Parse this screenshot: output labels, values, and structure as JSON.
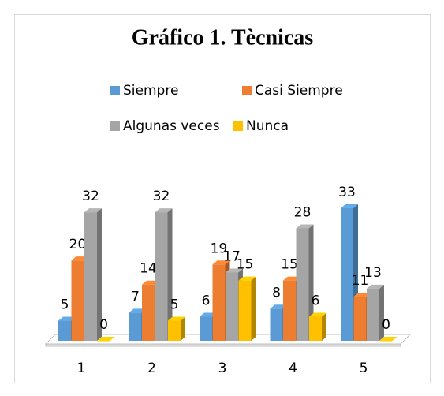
{
  "chart_data": {
    "type": "bar3d",
    "title": "Gráfico 1. Tècnicas",
    "categories": [
      "1",
      "2",
      "3",
      "4",
      "5"
    ],
    "series": [
      {
        "name": "Siempre",
        "color": "#5b9bd5",
        "values": [
          5,
          7,
          6,
          8,
          33
        ]
      },
      {
        "name": "Casi Siempre",
        "color": "#ed7d31",
        "values": [
          20,
          14,
          19,
          15,
          11
        ]
      },
      {
        "name": "Algunas veces",
        "color": "#a5a5a5",
        "values": [
          32,
          32,
          17,
          28,
          13
        ]
      },
      {
        "name": "Nunca",
        "color": "#ffc000",
        "values": [
          0,
          5,
          15,
          6,
          0
        ]
      }
    ],
    "legend": "top"
  }
}
